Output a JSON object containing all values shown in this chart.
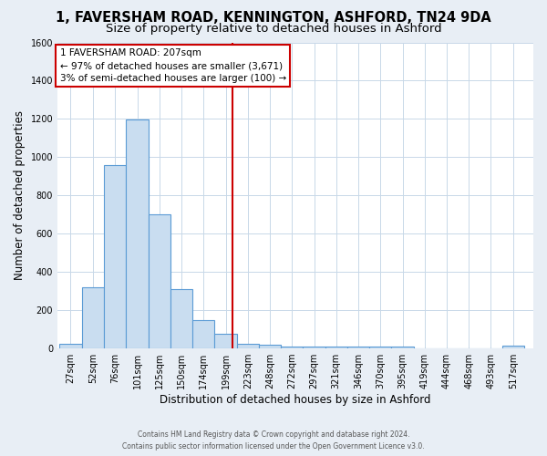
{
  "title": "1, FAVERSHAM ROAD, KENNINGTON, ASHFORD, TN24 9DA",
  "subtitle": "Size of property relative to detached houses in Ashford",
  "xlabel": "Distribution of detached houses by size in Ashford",
  "ylabel": "Number of detached properties",
  "bar_heights": [
    25,
    320,
    960,
    1195,
    700,
    310,
    150,
    75,
    25,
    20,
    10,
    10,
    10,
    10,
    10,
    10,
    0,
    0,
    0,
    0,
    15
  ],
  "bin_left_edges": [
    14.5,
    39.5,
    63.5,
    88.5,
    113.5,
    137.5,
    162.0,
    186.5,
    211.0,
    235.5,
    260.0,
    284.5,
    309.0,
    333.5,
    358.0,
    382.5,
    407.0,
    431.5,
    456.0,
    480.5,
    505.0
  ],
  "bin_width": 25.0,
  "tick_labels": [
    "27sqm",
    "52sqm",
    "76sqm",
    "101sqm",
    "125sqm",
    "150sqm",
    "174sqm",
    "199sqm",
    "223sqm",
    "248sqm",
    "272sqm",
    "297sqm",
    "321sqm",
    "346sqm",
    "370sqm",
    "395sqm",
    "419sqm",
    "444sqm",
    "468sqm",
    "493sqm",
    "517sqm"
  ],
  "bar_color": "#c9ddf0",
  "bar_edge_color": "#5b9bd5",
  "vline_x": 207,
  "vline_color": "#cc0000",
  "annotation_box_text": "1 FAVERSHAM ROAD: 207sqm\n← 97% of detached houses are smaller (3,671)\n3% of semi-detached houses are larger (100) →",
  "annotation_box_color": "#cc0000",
  "annotation_box_bg": "white",
  "ylim": [
    0,
    1600
  ],
  "yticks": [
    0,
    200,
    400,
    600,
    800,
    1000,
    1200,
    1400,
    1600
  ],
  "grid_color": "#c8d8e8",
  "plot_bg_color": "#ffffff",
  "fig_bg_color": "#e8eef5",
  "footer_line1": "Contains HM Land Registry data © Crown copyright and database right 2024.",
  "footer_line2": "Contains public sector information licensed under the Open Government Licence v3.0.",
  "title_fontsize": 10.5,
  "subtitle_fontsize": 9.5,
  "axis_label_fontsize": 8.5,
  "tick_fontsize": 7,
  "annot_fontsize": 7.5
}
